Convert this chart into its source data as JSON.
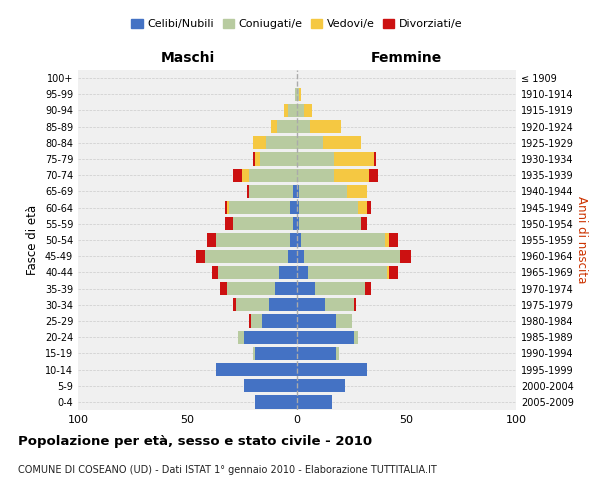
{
  "age_groups": [
    "0-4",
    "5-9",
    "10-14",
    "15-19",
    "20-24",
    "25-29",
    "30-34",
    "35-39",
    "40-44",
    "45-49",
    "50-54",
    "55-59",
    "60-64",
    "65-69",
    "70-74",
    "75-79",
    "80-84",
    "85-89",
    "90-94",
    "95-99",
    "100+"
  ],
  "birth_years": [
    "2005-2009",
    "2000-2004",
    "1995-1999",
    "1990-1994",
    "1985-1989",
    "1980-1984",
    "1975-1979",
    "1970-1974",
    "1965-1969",
    "1960-1964",
    "1955-1959",
    "1950-1954",
    "1945-1949",
    "1940-1944",
    "1935-1939",
    "1930-1934",
    "1925-1929",
    "1920-1924",
    "1915-1919",
    "1910-1914",
    "≤ 1909"
  ],
  "male": {
    "celibi": [
      19,
      24,
      37,
      19,
      24,
      16,
      13,
      10,
      8,
      4,
      3,
      2,
      3,
      2,
      0,
      0,
      0,
      0,
      0,
      0,
      0
    ],
    "coniugati": [
      0,
      0,
      0,
      1,
      3,
      5,
      15,
      22,
      28,
      38,
      34,
      27,
      28,
      20,
      22,
      17,
      14,
      9,
      4,
      1,
      0
    ],
    "vedovi": [
      0,
      0,
      0,
      0,
      0,
      0,
      0,
      0,
      0,
      0,
      0,
      0,
      1,
      0,
      3,
      2,
      6,
      3,
      2,
      0,
      0
    ],
    "divorziati": [
      0,
      0,
      0,
      0,
      0,
      1,
      1,
      3,
      3,
      4,
      4,
      4,
      1,
      1,
      4,
      1,
      0,
      0,
      0,
      0,
      0
    ]
  },
  "female": {
    "nubili": [
      16,
      22,
      32,
      18,
      26,
      18,
      13,
      8,
      5,
      3,
      2,
      1,
      1,
      1,
      0,
      0,
      0,
      0,
      0,
      0,
      0
    ],
    "coniugate": [
      0,
      0,
      0,
      1,
      2,
      7,
      13,
      23,
      36,
      44,
      38,
      28,
      27,
      22,
      17,
      17,
      12,
      6,
      3,
      1,
      0
    ],
    "vedove": [
      0,
      0,
      0,
      0,
      0,
      0,
      0,
      0,
      1,
      0,
      2,
      0,
      4,
      9,
      16,
      18,
      17,
      14,
      4,
      1,
      0
    ],
    "divorziate": [
      0,
      0,
      0,
      0,
      0,
      0,
      1,
      3,
      4,
      5,
      4,
      3,
      2,
      0,
      4,
      1,
      0,
      0,
      0,
      0,
      0
    ]
  },
  "colors": {
    "celibi_nubili": "#4472C4",
    "coniugati": "#B8CBA0",
    "vedovi": "#F5C842",
    "divorziati": "#CC1111"
  },
  "xlim": 100,
  "title": "Popolazione per età, sesso e stato civile - 2010",
  "subtitle": "COMUNE DI COSEANO (UD) - Dati ISTAT 1° gennaio 2010 - Elaborazione TUTTITALIA.IT",
  "ylabel_left": "Fasce di età",
  "ylabel_right": "Anni di nascita",
  "legend_labels": [
    "Celibi/Nubili",
    "Coniugati/e",
    "Vedovi/e",
    "Divorziati/e"
  ]
}
